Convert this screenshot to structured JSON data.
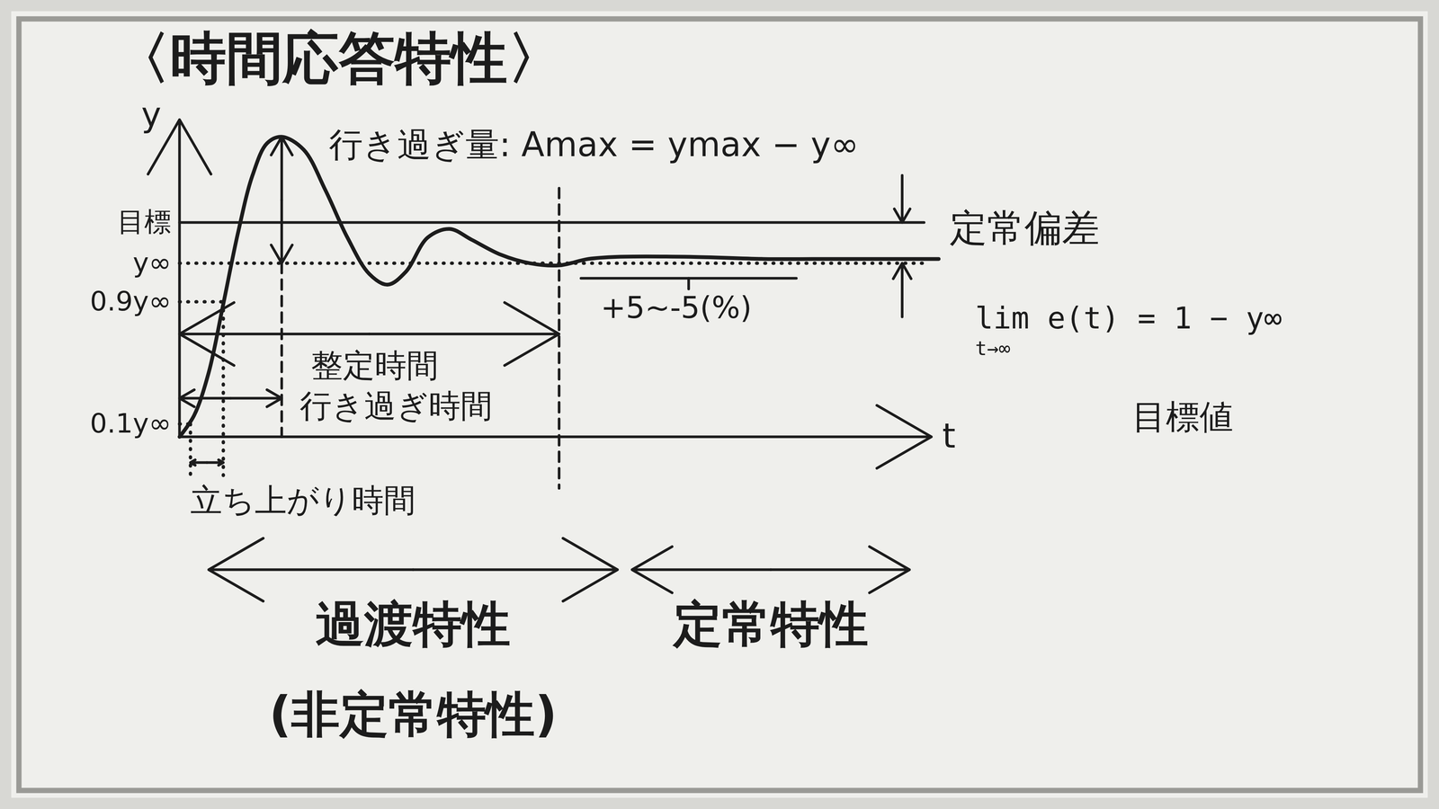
{
  "chart_data": {
    "type": "line",
    "title": "〈時間応答特性〉",
    "x_label": "t",
    "y_label": "y",
    "xlim": [
      -2.2,
      17
    ],
    "ylim": [
      -1.65,
      1.95
    ],
    "tick_labels": false,
    "grid": false,
    "color": "#1c1c1c",
    "x": [
      0,
      0.2,
      0.4,
      0.6,
      0.8,
      1.0,
      1.2,
      1.4,
      1.7,
      2.0,
      2.3,
      2.6,
      2.85,
      3.1,
      3.4,
      3.7,
      4.0,
      4.4,
      4.8,
      5.2,
      5.6,
      6.0,
      7.0,
      8.0,
      9.0,
      10.0,
      10.4
    ],
    "values": [
      0,
      0.1,
      0.3,
      0.62,
      0.95,
      1.22,
      1.37,
      1.4,
      1.34,
      1.15,
      0.93,
      0.76,
      0.71,
      0.77,
      0.93,
      0.97,
      0.92,
      0.85,
      0.81,
      0.8,
      0.83,
      0.84,
      0.84,
      0.83,
      0.83,
      0.83,
      0.83
    ],
    "levels": {
      "target": {
        "label": "目標",
        "value": 1.0,
        "to": 10.2,
        "line_style": "solid"
      },
      "steady_value": {
        "label": "y∞",
        "value": 0.81,
        "to": 10.2,
        "line_style": "dotted"
      },
      "rise_upper": {
        "label": "0.9y∞",
        "value": 0.63,
        "line_style": "dotted"
      },
      "rise_lower": {
        "label": "0.1y∞",
        "value": 0.06,
        "line_style": "dotted"
      }
    },
    "overshoot": {
      "label": "行き過ぎ量: Amax = ymax − y∞",
      "ymax": 1.4
    },
    "rise_time": {
      "label": "立ち上がり時間",
      "from": 0.15,
      "to": 0.6
    },
    "peak_time": {
      "label": "行き過ぎ時間",
      "value": 1.4
    },
    "settling_time": {
      "label": "整定時間",
      "value": 5.2
    },
    "band": {
      "label": "+5~-5(%)",
      "from": 5.5,
      "to": 8.45
    },
    "steady_state_error": {
      "label": "定常偏差"
    },
    "limit": {
      "lim": "lim",
      "subscript": "t→∞",
      "left": "e(t) =",
      "target": "1",
      "right": "− y∞",
      "note": "目標値"
    },
    "regions": [
      {
        "label": "過渡特性",
        "sublabel": "(非定常特性)",
        "from": 0.4,
        "to": 6.0
      },
      {
        "label": "定常特性",
        "from": 6.2,
        "to": 10.0
      }
    ]
  }
}
